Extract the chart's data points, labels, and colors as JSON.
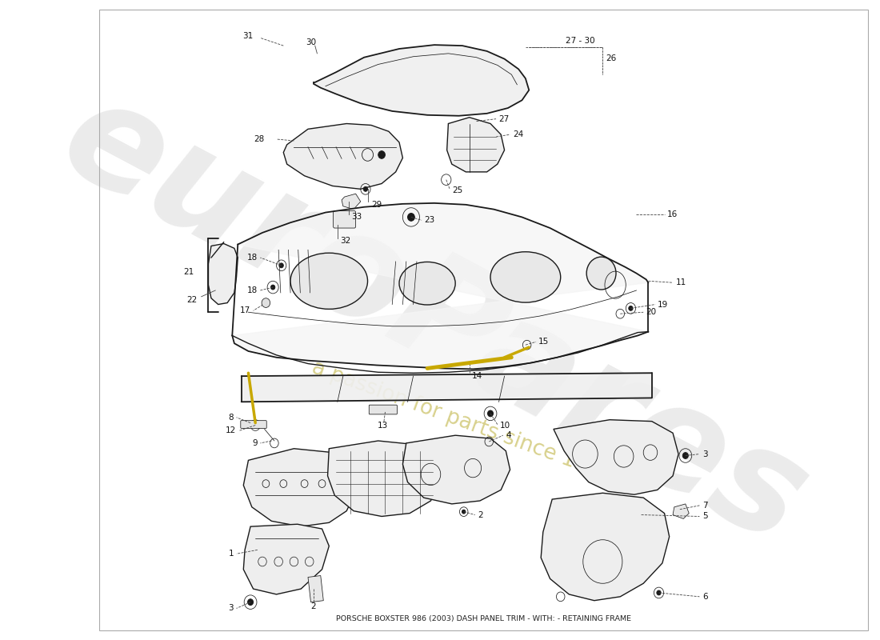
{
  "title": "PORSCHE BOXSTER 986 (2003) DASH PANEL TRIM - WITH: - RETAINING FRAME",
  "background_color": "#ffffff",
  "watermark_text1": "euroPares",
  "watermark_text2": "a passion for parts since 1985",
  "fig_width": 11.0,
  "fig_height": 8.0,
  "dpi": 100,
  "line_color": "#1a1a1a",
  "label_color": "#111111",
  "leader_color": "#555555",
  "lw_main": 1.0,
  "lw_thin": 0.55,
  "lw_thick": 1.3,
  "fs": 7.5,
  "xlim": [
    0,
    1100
  ],
  "ylim": [
    0,
    800
  ]
}
